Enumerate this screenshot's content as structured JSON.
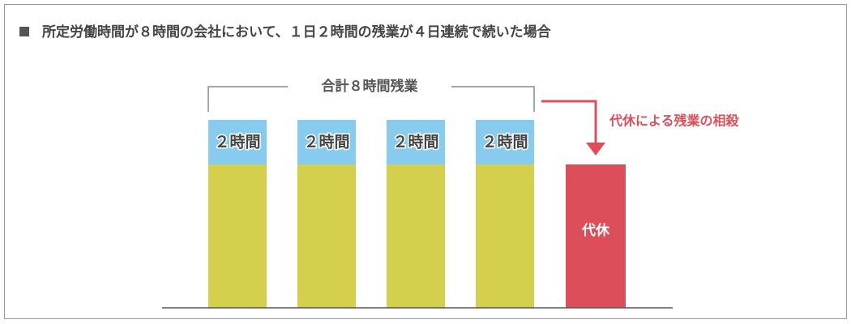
{
  "title": "所定労働時間が８時間の会社において、１日２時間の残業が４日連続で続いた場合",
  "bracket_label": "合計８時間残業",
  "bars": [
    {
      "label": "２時間"
    },
    {
      "label": "２時間"
    },
    {
      "label": "２時間"
    },
    {
      "label": "２時間"
    }
  ],
  "arrow_label": "代休による残業の相殺",
  "substitute_label": "代休"
}
